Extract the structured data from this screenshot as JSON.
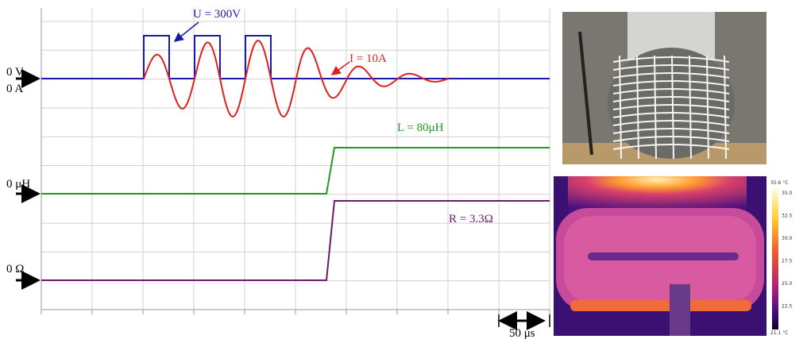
{
  "labels": {
    "voltage": "U = 300V",
    "current": "I = 10A",
    "inductance": "L = 80μH",
    "resistance": "R = 3.3Ω"
  },
  "zeros": {
    "volt": "0 V",
    "amp": "0 A",
    "henry": "0 μH",
    "ohm": "0 Ω"
  },
  "timescale": "50 μs",
  "thermal": {
    "max": "35.6 °C",
    "min": "21.1 °C",
    "scale": [
      "35.0",
      "32.5",
      "30.0",
      "27.5",
      "25.0",
      "22.5"
    ]
  }
}
